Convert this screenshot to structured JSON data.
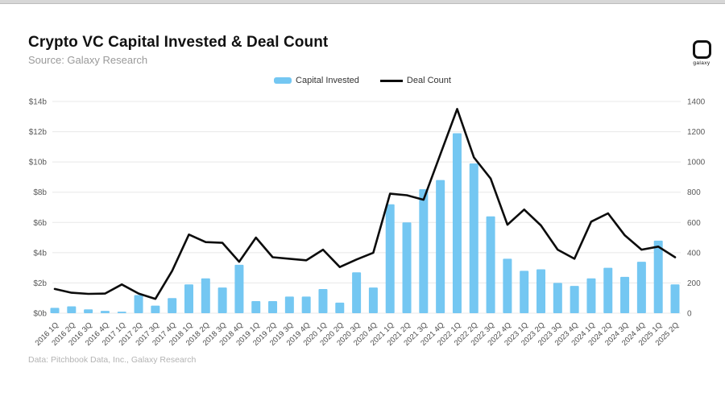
{
  "header": {
    "title": "Crypto VC Capital Invested & Deal Count",
    "subtitle": "Source: Galaxy Research",
    "logo_text": "galaxy"
  },
  "legend": {
    "items": [
      {
        "label": "Capital Invested",
        "swatch": "bar",
        "color": "#74C7F2"
      },
      {
        "label": "Deal Count",
        "swatch": "line",
        "color": "#0c0c0c"
      }
    ]
  },
  "footer": {
    "text": "Data: Pitchbook Data, Inc., Galaxy Research"
  },
  "chart_data": {
    "type": "bar+line",
    "title": "Crypto VC Capital Invested & Deal Count",
    "grid": true,
    "legend_position": "top-center",
    "categories": [
      "2016 1Q",
      "2016 2Q",
      "2016 3Q",
      "2016 4Q",
      "2017 1Q",
      "2017 2Q",
      "2017 3Q",
      "2017 4Q",
      "2018 1Q",
      "2018 2Q",
      "2018 3Q",
      "2018 4Q",
      "2019 1Q",
      "2019 2Q",
      "2019 3Q",
      "2019 4Q",
      "2020 1Q",
      "2020 2Q",
      "2020 3Q",
      "2020 4Q",
      "2021 1Q",
      "2021 2Q",
      "2021 3Q",
      "2021 4Q",
      "2022 1Q",
      "2022 2Q",
      "2022 3Q",
      "2022 4Q",
      "2023 1Q",
      "2023 2Q",
      "2023 3Q",
      "2023 4Q",
      "2024 1Q",
      "2024 2Q",
      "2024 3Q",
      "2024 4Q",
      "2025 1Q",
      "2025 2Q"
    ],
    "series": [
      {
        "name": "Capital Invested",
        "type": "bar",
        "axis": "left",
        "unit": "$ billions",
        "color": "#74C7F2",
        "values": [
          0.35,
          0.45,
          0.25,
          0.15,
          0.1,
          1.2,
          0.5,
          1.0,
          1.9,
          2.3,
          1.7,
          3.2,
          0.8,
          0.8,
          1.1,
          1.1,
          1.6,
          0.7,
          2.7,
          1.7,
          7.2,
          6.0,
          8.2,
          8.8,
          11.9,
          9.9,
          6.4,
          3.6,
          2.8,
          2.9,
          2.0,
          1.8,
          2.3,
          3.0,
          2.4,
          3.4,
          4.8,
          1.9
        ]
      },
      {
        "name": "Deal Count",
        "type": "line",
        "axis": "right",
        "unit": "deals",
        "color": "#0c0c0c",
        "values": [
          160,
          135,
          128,
          130,
          190,
          130,
          95,
          280,
          520,
          470,
          465,
          340,
          500,
          370,
          360,
          350,
          420,
          305,
          355,
          400,
          790,
          780,
          750,
          1050,
          1350,
          1030,
          890,
          585,
          685,
          580,
          420,
          360,
          605,
          660,
          515,
          420,
          440,
          370
        ]
      }
    ],
    "left_axis": {
      "min": 0,
      "max": 14,
      "ticks": [
        "$0b",
        "$2b",
        "$4b",
        "$6b",
        "$8b",
        "$10b",
        "$12b",
        "$14b"
      ]
    },
    "right_axis": {
      "min": 0,
      "max": 1400,
      "ticks": [
        "0",
        "200",
        "400",
        "600",
        "800",
        "1000",
        "1200",
        "1400"
      ]
    }
  }
}
